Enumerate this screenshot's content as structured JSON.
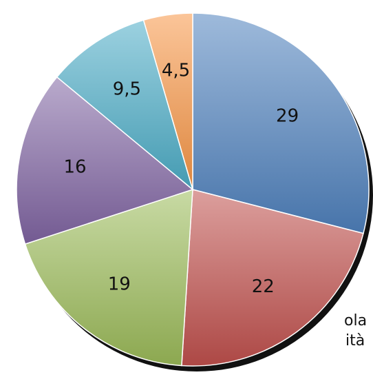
{
  "chart_data": {
    "type": "pie",
    "slices": [
      {
        "value": 29,
        "label": "29",
        "color": "#4F81BD"
      },
      {
        "value": 22,
        "label": "22",
        "color": "#C0504D"
      },
      {
        "value": 19,
        "label": "19",
        "color": "#9BBB59"
      },
      {
        "value": 16,
        "label": "16",
        "color": "#8064A2"
      },
      {
        "value": 9.5,
        "label": "9,5",
        "color": "#4BACC6"
      },
      {
        "value": 4.5,
        "label": "4,5",
        "color": "#F79646"
      }
    ],
    "start": "12 o'clock",
    "direction": "clockwise"
  },
  "cut_off_text": [
    "ola",
    "ità"
  ]
}
